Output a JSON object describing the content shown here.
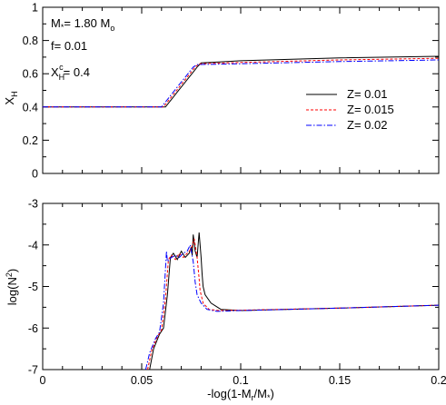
{
  "chart_data": [
    {
      "type": "line",
      "panel": "top",
      "ylabel": "X_H",
      "xlabel": "",
      "xlim": [
        0,
        0.2
      ],
      "ylim": [
        0,
        1
      ],
      "xticks": [
        0,
        0.05,
        0.1,
        0.15,
        0.2
      ],
      "yticks": [
        0,
        0.2,
        0.4,
        0.6,
        0.8,
        1
      ],
      "ytick_labels": [
        "0",
        "0.2",
        "0.4",
        "0.6",
        "0.8",
        "1"
      ],
      "annotations": [
        "M*= 1.80 Mo",
        "f= 0.01",
        "XHc= 0.4"
      ],
      "legend_position": "right",
      "series": [
        {
          "name": "Z= 0.01",
          "color": "#000000",
          "dash": "solid",
          "x": [
            0,
            0.062,
            0.064,
            0.066,
            0.068,
            0.07,
            0.072,
            0.074,
            0.076,
            0.078,
            0.08,
            0.1,
            0.15,
            0.2
          ],
          "y": [
            0.4,
            0.4,
            0.43,
            0.46,
            0.49,
            0.52,
            0.55,
            0.58,
            0.61,
            0.64,
            0.665,
            0.678,
            0.695,
            0.705
          ]
        },
        {
          "name": "Z= 0.015",
          "color": "#ff0000",
          "dash": "dashed",
          "x": [
            0,
            0.061,
            0.063,
            0.065,
            0.067,
            0.069,
            0.071,
            0.073,
            0.075,
            0.077,
            0.079,
            0.1,
            0.15,
            0.2
          ],
          "y": [
            0.4,
            0.4,
            0.43,
            0.46,
            0.49,
            0.52,
            0.55,
            0.58,
            0.61,
            0.64,
            0.66,
            0.668,
            0.683,
            0.693
          ]
        },
        {
          "name": "Z= 0.02",
          "color": "#0000ff",
          "dash": "dashdot",
          "x": [
            0,
            0.06,
            0.062,
            0.064,
            0.066,
            0.068,
            0.07,
            0.072,
            0.074,
            0.076,
            0.078,
            0.1,
            0.15,
            0.2
          ],
          "y": [
            0.4,
            0.4,
            0.43,
            0.46,
            0.49,
            0.52,
            0.55,
            0.58,
            0.61,
            0.64,
            0.655,
            0.66,
            0.673,
            0.683
          ]
        }
      ]
    },
    {
      "type": "line",
      "panel": "bottom",
      "ylabel": "log(N^2)",
      "xlabel": "-log(1-Mr/M*)",
      "xlim": [
        0,
        0.2
      ],
      "ylim": [
        -7,
        -3
      ],
      "xticks": [
        0,
        0.05,
        0.1,
        0.15,
        0.2
      ],
      "xtick_labels": [
        "0",
        "0.05",
        "0.1",
        "0.15",
        "0.2"
      ],
      "yticks": [
        -7,
        -6,
        -5,
        -4,
        -3
      ],
      "ytick_labels": [
        "-7",
        "-6",
        "-5",
        "-4",
        "-3"
      ],
      "series": [
        {
          "name": "Z= 0.01",
          "color": "#000000",
          "dash": "solid",
          "x": [
            0.054,
            0.056,
            0.059,
            0.061,
            0.063,
            0.0645,
            0.066,
            0.068,
            0.07,
            0.072,
            0.074,
            0.075,
            0.0755,
            0.076,
            0.077,
            0.078,
            0.079,
            0.08,
            0.0805,
            0.081,
            0.082,
            0.085,
            0.09,
            0.1,
            0.15,
            0.2
          ],
          "y": [
            -7.0,
            -6.5,
            -6.15,
            -6.0,
            -5.2,
            -4.3,
            -4.2,
            -4.35,
            -4.15,
            -4.3,
            -4.2,
            -4.05,
            -4.25,
            -3.75,
            -4.15,
            -4.3,
            -3.7,
            -4.3,
            -4.7,
            -5.0,
            -5.2,
            -5.4,
            -5.55,
            -5.58,
            -5.52,
            -5.45
          ]
        },
        {
          "name": "Z= 0.015",
          "color": "#ff0000",
          "dash": "dashed",
          "x": [
            0.053,
            0.055,
            0.058,
            0.06,
            0.062,
            0.0635,
            0.065,
            0.067,
            0.069,
            0.071,
            0.073,
            0.075,
            0.0765,
            0.078,
            0.079,
            0.0795,
            0.08,
            0.081,
            0.084,
            0.089,
            0.1,
            0.15,
            0.2
          ],
          "y": [
            -7.0,
            -6.55,
            -6.2,
            -6.05,
            -5.3,
            -4.35,
            -4.25,
            -4.35,
            -4.2,
            -4.3,
            -4.2,
            -4.1,
            -3.85,
            -4.3,
            -4.8,
            -5.1,
            -5.2,
            -5.4,
            -5.55,
            -5.58,
            -5.57,
            -5.52,
            -5.45
          ]
        },
        {
          "name": "Z= 0.02",
          "color": "#0000ff",
          "dash": "dashdot",
          "x": [
            0.052,
            0.054,
            0.057,
            0.059,
            0.061,
            0.0625,
            0.063,
            0.065,
            0.067,
            0.069,
            0.071,
            0.073,
            0.0745,
            0.076,
            0.077,
            0.078,
            0.08,
            0.083,
            0.088,
            0.1,
            0.15,
            0.2
          ],
          "y": [
            -7.0,
            -6.6,
            -6.25,
            -6.1,
            -5.4,
            -4.15,
            -4.4,
            -4.3,
            -4.25,
            -4.3,
            -4.2,
            -4.15,
            -4.0,
            -4.4,
            -4.9,
            -5.2,
            -5.4,
            -5.55,
            -5.6,
            -5.58,
            -5.52,
            -5.45
          ]
        }
      ]
    }
  ]
}
